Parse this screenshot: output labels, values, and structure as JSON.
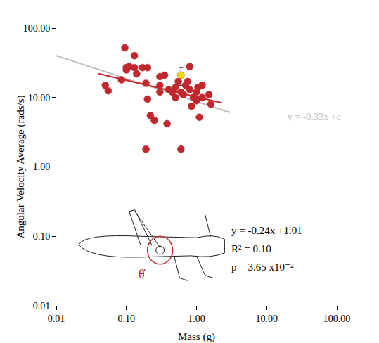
{
  "chart_data": {
    "type": "scatter",
    "log": true,
    "grid": false,
    "x_label": "Mass (g)",
    "y_label": "Angular Velocity Average (rads/s)",
    "xlim": [
      0.01,
      100
    ],
    "ylim": [
      0.01,
      100
    ],
    "xticks": [
      {
        "value": 0.01,
        "label": "0.01"
      },
      {
        "value": 0.1,
        "label": "0.10"
      },
      {
        "value": 1,
        "label": "1.00"
      },
      {
        "value": 10,
        "label": "10.00"
      },
      {
        "value": 100,
        "label": "100.00"
      }
    ],
    "yticks": [
      {
        "value": 0.01,
        "label": "0.01"
      },
      {
        "value": 0.1,
        "label": "0.10"
      },
      {
        "value": 1,
        "label": "1.00"
      },
      {
        "value": 10,
        "label": "10.00"
      },
      {
        "value": 100,
        "label": "100.00"
      }
    ],
    "series": [
      {
        "type": "line",
        "color": "#bfbfbf",
        "x": [
          0.01,
          3
        ],
        "values": [
          40,
          6.1
        ]
      },
      {
        "type": "line",
        "color": "#c0282d",
        "x": [
          0.04,
          2.3
        ],
        "values": [
          22.1,
          8.4
        ]
      },
      {
        "type": "scatter",
        "color": "#c0282d",
        "marker": "circle",
        "x": [
          0.05,
          0.055,
          0.085,
          0.095,
          0.1,
          0.1,
          0.11,
          0.13,
          0.13,
          0.14,
          0.17,
          0.19,
          0.2,
          0.19,
          0.2,
          0.22,
          0.25,
          0.3,
          0.3,
          0.3,
          0.35,
          0.38,
          0.4,
          0.45,
          0.5,
          0.5,
          0.55,
          0.6,
          0.6,
          0.65,
          0.7,
          0.75,
          0.8,
          0.8,
          0.85,
          0.9,
          1.0,
          1.0,
          1.05,
          1.1,
          1.2,
          1.2,
          1.5,
          1.6
        ],
        "values": [
          15,
          12.5,
          18,
          52,
          27,
          25,
          28,
          40,
          27,
          22,
          27,
          16,
          27,
          1.8,
          9.5,
          5.5,
          4.7,
          20,
          15,
          12,
          21,
          4.2,
          13,
          12,
          14,
          10,
          17,
          1.8,
          12,
          11,
          15,
          17,
          28,
          13,
          7.5,
          10,
          12,
          9,
          14,
          5.2,
          15,
          10,
          11,
          8
        ]
      },
      {
        "type": "scatter",
        "color": "#ffd700",
        "marker": "circle",
        "x": [
          0.6
        ],
        "values": [
          21
        ],
        "error": [
          6
        ]
      }
    ],
    "annotations": [
      {
        "text": "y = -0.33x +c",
        "color": "#bfbfbf"
      },
      {
        "text": "y = -0.24x +1.01",
        "color": "#000000"
      },
      {
        "text": "R² = 0.10",
        "color": "#000000"
      },
      {
        "text": "p = 3.65 x10⁻²",
        "color": "#000000"
      },
      {
        "text": "θ̇",
        "color": "#c0282d"
      }
    ]
  }
}
